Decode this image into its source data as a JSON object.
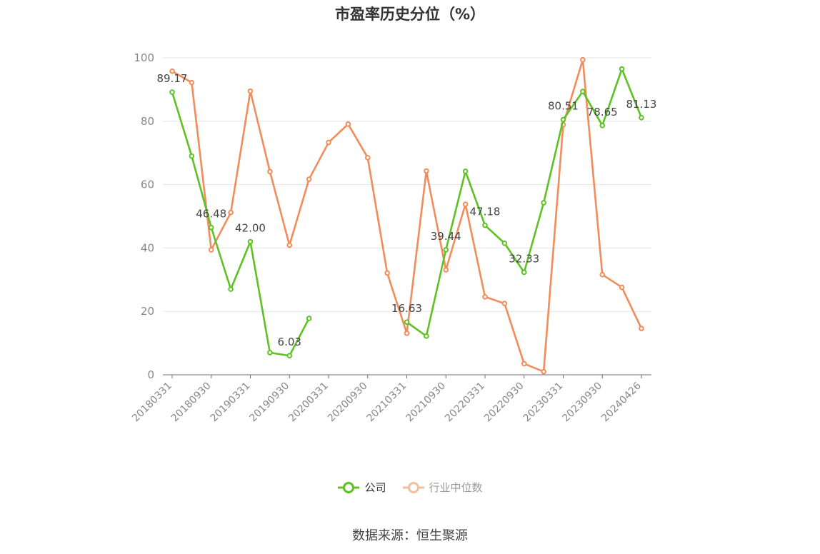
{
  "chart_data": {
    "type": "line",
    "title": "市盈率历史分位（%）",
    "source_text": "数据来源：恒生聚源",
    "ylim": [
      0,
      100
    ],
    "yticks": [
      0,
      20,
      40,
      60,
      80,
      100
    ],
    "x": [
      "20180331",
      "20180630",
      "20180930",
      "20181231",
      "20190331",
      "20190630",
      "20190930",
      "20191231",
      "20200331",
      "20200630",
      "20200930",
      "20201231",
      "20210331",
      "20210630",
      "20210930",
      "20211231",
      "20220331",
      "20220630",
      "20220930",
      "20221231",
      "20230331",
      "20230630",
      "20230930",
      "20231231",
      "20240426"
    ],
    "xtick_labels": [
      "20180331",
      "20180930",
      "20190331",
      "20190930",
      "20200331",
      "20200930",
      "20210331",
      "20210930",
      "20220331",
      "20220930",
      "20230331",
      "20230930",
      "20240426"
    ],
    "grid": true,
    "legend_position": "bottom",
    "series": [
      {
        "name": "公司",
        "color": "#5ec224",
        "values": [
          89.17,
          69,
          46.48,
          27,
          42.0,
          7,
          6.03,
          17.8,
          null,
          null,
          null,
          null,
          16.63,
          12.2,
          39.44,
          64.2,
          47.18,
          41.5,
          32.33,
          54.3,
          80.51,
          89.4,
          78.65,
          96.5,
          81.13
        ],
        "data_labels": [
          {
            "index": 0,
            "text": "89.17"
          },
          {
            "index": 2,
            "text": "46.48"
          },
          {
            "index": 4,
            "text": "42.00"
          },
          {
            "index": 6,
            "text": "6.03"
          },
          {
            "index": 12,
            "text": "16.63"
          },
          {
            "index": 14,
            "text": "39.44"
          },
          {
            "index": 16,
            "text": "47.18"
          },
          {
            "index": 18,
            "text": "32.33"
          },
          {
            "index": 20,
            "text": "80.51"
          },
          {
            "index": 22,
            "text": "78.65"
          },
          {
            "index": 24,
            "text": "81.13"
          }
        ]
      },
      {
        "name": "行业中位数",
        "color": "#f28c5a",
        "values": [
          95.8,
          92.2,
          39.4,
          51.2,
          89.5,
          64.1,
          40.9,
          61.7,
          73.3,
          79.1,
          68.5,
          32.1,
          13.1,
          64.3,
          33.1,
          53.8,
          24.6,
          22.5,
          3.5,
          1.0,
          78.9,
          99.4,
          31.6,
          27.6,
          14.6
        ]
      }
    ]
  },
  "legend": {
    "item1_label": "公司",
    "item2_label": "行业中位数",
    "item1_color": "#5ec224",
    "item2_color": "#f5bda0",
    "item2_text_color": "#999999",
    "item1_text_color": "#333333"
  }
}
